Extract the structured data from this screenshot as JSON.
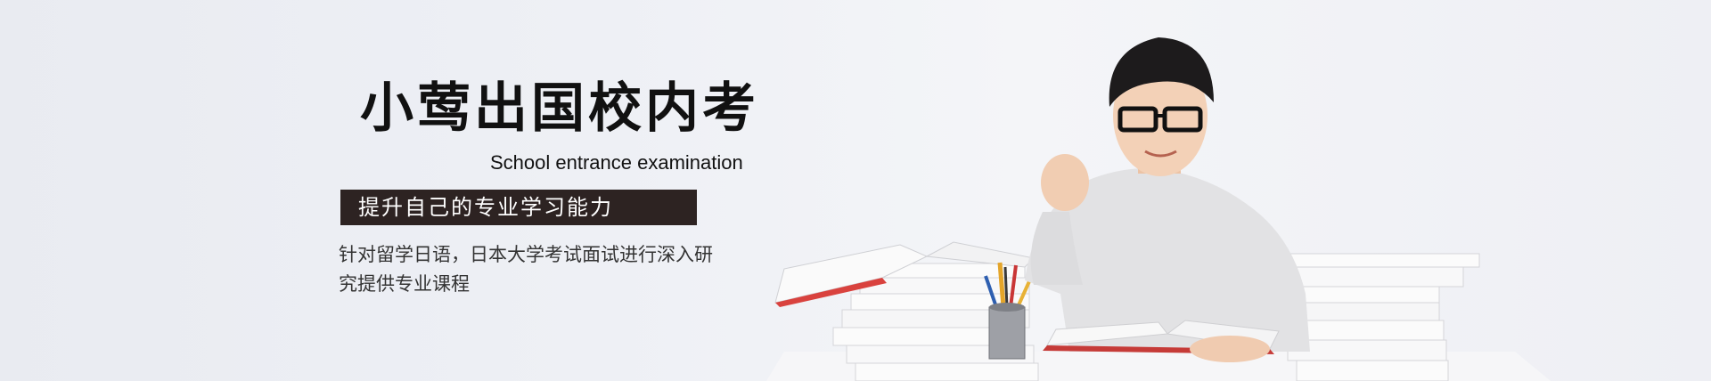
{
  "banner": {
    "title": "小莺出国校内考",
    "subtitle": "School entrance examination",
    "tagline": "提升自己的专业学习能力",
    "description": "针对留学日语，日本大学考试面试进行深入研究提供专业课程"
  },
  "colors": {
    "background": "#eceef3",
    "tagline_bg": "#2d2322",
    "title_text": "#111111"
  },
  "icons": [
    "student-illustration",
    "book-stack-icon",
    "pencil-cup-icon"
  ]
}
